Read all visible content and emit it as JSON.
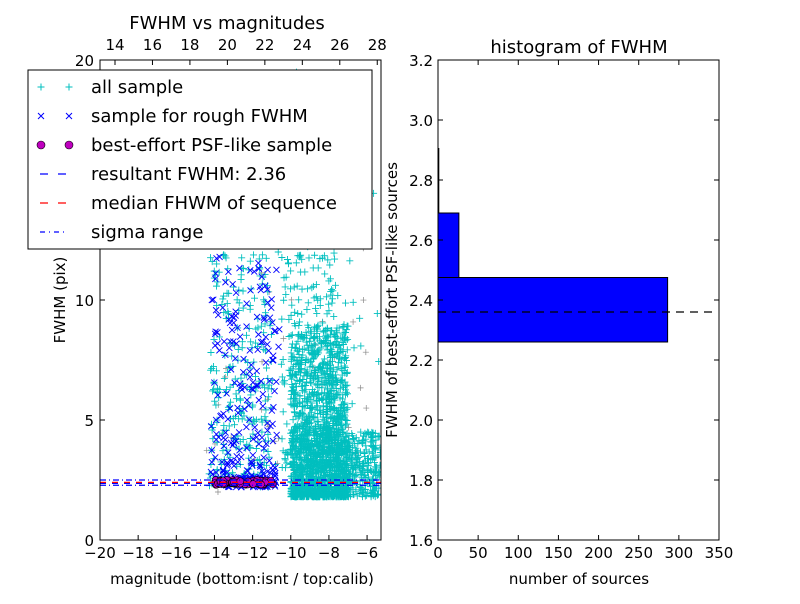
{
  "chart_data": [
    {
      "type": "scatter",
      "title": "FWHM vs magnitudes",
      "xlabel": "magnitude (bottom:isnt / top:calib)",
      "ylabel": "FWHM (pix)",
      "xlim": [
        -20,
        -5.27
      ],
      "ylim": [
        0,
        20
      ],
      "top_xlim": [
        13.2,
        28.2
      ],
      "xticks": [
        -20,
        -18,
        -16,
        -14,
        -12,
        -10,
        -8,
        -6
      ],
      "xtick_labels": [
        "−20",
        "−18",
        "−16",
        "−14",
        "−12",
        "−10",
        "−8",
        "−6"
      ],
      "top_xticks": [
        14,
        16,
        18,
        20,
        22,
        24,
        26,
        28
      ],
      "top_xtick_labels": [
        "14",
        "16",
        "18",
        "20",
        "22",
        "24",
        "26",
        "28"
      ],
      "yticks": [
        0,
        5,
        10,
        20
      ],
      "ytick_labels": [
        "0",
        "5",
        "10",
        "20"
      ],
      "legend_position": "top-left",
      "legend": [
        {
          "label": "all sample",
          "marker": "+",
          "color": "#00bfbf"
        },
        {
          "label": "sample for rough FWHM",
          "marker": "x",
          "color": "#0000ff"
        },
        {
          "label": "best-effort PSF-like sample",
          "marker": "o",
          "color": "#bf00bf"
        },
        {
          "label": "resultant FWHM: 2.36",
          "line": "dashed",
          "color": "#0000ff"
        },
        {
          "label": "median FHWM of sequence",
          "line": "dashed",
          "color": "#ff0000"
        },
        {
          "label": "sigma range",
          "line": "dashdot",
          "color": "#0000ff"
        }
      ],
      "hlines": [
        {
          "name": "resultant",
          "y": 2.36,
          "color": "#0000ff",
          "style": "dashed"
        },
        {
          "name": "median",
          "y": 2.4,
          "color": "#ff0000",
          "style": "dashed"
        },
        {
          "name": "sigma-low",
          "y": 2.28,
          "color": "#0000ff",
          "style": "dashdot"
        },
        {
          "name": "sigma-high",
          "y": 2.5,
          "color": "#0000ff",
          "style": "dashdot"
        }
      ],
      "series": [
        {
          "name": "all sample",
          "color": "#00bfbf",
          "marker": "+",
          "clusters": [
            {
              "n": 1400,
              "x": [
                -10,
                -7
              ],
              "y": [
                1.8,
                9
              ],
              "skew": 2
            },
            {
              "n": 600,
              "x": [
                -9.5,
                -5.3
              ],
              "y": [
                1.8,
                4.5
              ],
              "skew": 1
            },
            {
              "n": 350,
              "x": [
                -10.5,
                -7.5
              ],
              "y": [
                3,
                19.5
              ],
              "skew": 1.6
            },
            {
              "n": 260,
              "x": [
                -14.3,
                -11
              ],
              "y": [
                2.2,
                12
              ],
              "skew": 1.4
            },
            {
              "n": 80,
              "x": [
                -14.5,
                -5.3
              ],
              "y": [
                2,
                18
              ],
              "skew": 1
            }
          ]
        },
        {
          "name": "sample for rough FWHM",
          "color": "#0000ff",
          "marker": "x",
          "clusters": [
            {
              "n": 220,
              "x": [
                -14.2,
                -10.6
              ],
              "y": [
                2.3,
                11.8
              ],
              "skew": 1.5
            },
            {
              "n": 120,
              "x": [
                -14,
                -10.8
              ],
              "y": [
                2.2,
                2.6
              ],
              "skew": 1
            }
          ]
        },
        {
          "name": "best-effort PSF-like sample",
          "color": "#bf00bf",
          "marker": "o",
          "clusters": [
            {
              "n": 90,
              "x": [
                -14,
                -10.9
              ],
              "y": [
                2.3,
                2.5
              ],
              "skew": 1
            }
          ]
        }
      ]
    },
    {
      "type": "bar",
      "orientation": "horizontal",
      "title": "histogram of FWHM",
      "xlabel": "number of sources",
      "ylabel": "FWHM of best-effort PSF-like sources",
      "xlim": [
        0,
        350
      ],
      "ylim": [
        1.6,
        3.2
      ],
      "xticks": [
        0,
        50,
        100,
        150,
        200,
        250,
        300,
        350
      ],
      "yticks": [
        1.6,
        1.8,
        2.0,
        2.2,
        2.4,
        2.6,
        2.8,
        3.0,
        3.2
      ],
      "xtick_labels": [
        "0",
        "50",
        "100",
        "150",
        "200",
        "250",
        "300",
        "350"
      ],
      "ytick_labels": [
        "1.6",
        "1.8",
        "2.0",
        "2.2",
        "2.4",
        "2.6",
        "2.8",
        "3.0",
        "3.2"
      ],
      "bins": [
        {
          "from": 2.26,
          "to": 2.475,
          "count": 286
        },
        {
          "from": 2.475,
          "to": 2.69,
          "count": 26
        },
        {
          "from": 2.69,
          "to": 2.905,
          "count": 1
        }
      ],
      "bar_color": "#0000ff",
      "hline": {
        "y": 2.36,
        "color": "#000000",
        "style": "dashed"
      }
    }
  ]
}
